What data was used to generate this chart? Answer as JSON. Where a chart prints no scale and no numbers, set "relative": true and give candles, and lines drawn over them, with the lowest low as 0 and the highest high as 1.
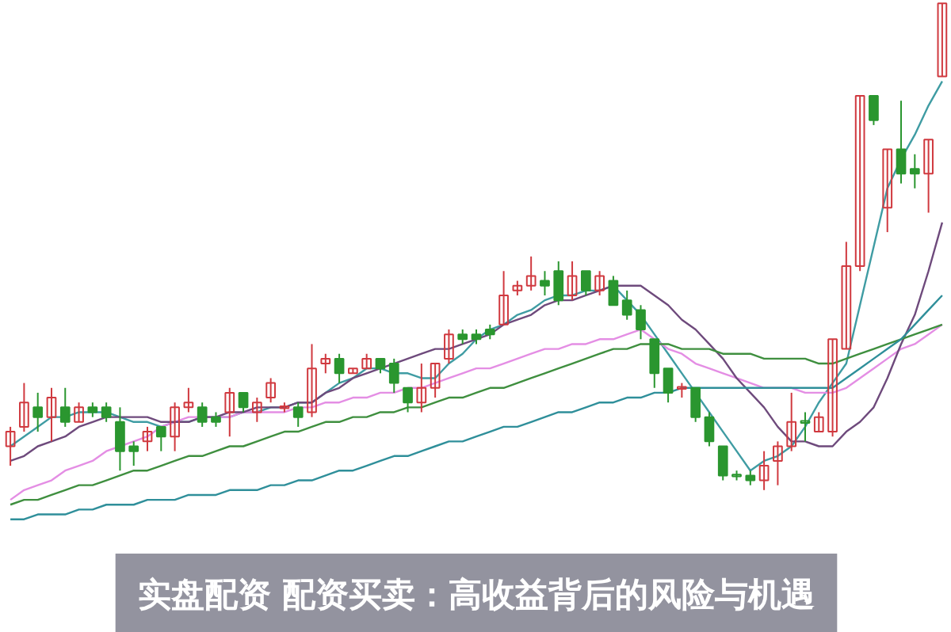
{
  "chart_data": {
    "type": "candlestick",
    "title": "实盘配资 配资买卖：高收益背后的风险与机遇",
    "relative": true,
    "tick_labels": false,
    "categories": [
      null,
      null,
      null,
      null,
      null,
      null,
      null,
      null,
      null,
      null,
      null,
      null,
      null,
      null,
      null,
      null,
      null,
      null,
      null,
      null,
      null,
      null,
      null,
      null,
      null,
      null,
      null,
      null,
      null,
      null,
      null,
      null,
      null,
      null,
      null,
      null,
      null,
      null,
      null,
      null,
      null,
      null,
      null,
      null,
      null,
      null,
      null,
      null,
      null,
      null,
      null,
      null,
      null,
      null,
      null,
      null,
      null,
      null,
      null,
      null,
      null,
      null,
      null,
      null,
      null,
      null,
      null,
      null,
      null
    ],
    "ohlc": [
      [
        0.09,
        0.13,
        0.05,
        0.12
      ],
      [
        0.13,
        0.22,
        0.12,
        0.18
      ],
      [
        0.17,
        0.2,
        0.12,
        0.15
      ],
      [
        0.15,
        0.21,
        0.1,
        0.19
      ],
      [
        0.17,
        0.21,
        0.13,
        0.14
      ],
      [
        0.14,
        0.18,
        0.14,
        0.17
      ],
      [
        0.17,
        0.18,
        0.15,
        0.16
      ],
      [
        0.17,
        0.18,
        0.14,
        0.15
      ],
      [
        0.14,
        0.17,
        0.04,
        0.08
      ],
      [
        0.09,
        0.1,
        0.05,
        0.08
      ],
      [
        0.1,
        0.13,
        0.08,
        0.12
      ],
      [
        0.13,
        0.13,
        0.08,
        0.11
      ],
      [
        0.11,
        0.18,
        0.08,
        0.17
      ],
      [
        0.17,
        0.21,
        0.16,
        0.18
      ],
      [
        0.17,
        0.18,
        0.13,
        0.14
      ],
      [
        0.15,
        0.16,
        0.13,
        0.14
      ],
      [
        0.16,
        0.21,
        0.11,
        0.2
      ],
      [
        0.2,
        0.2,
        0.16,
        0.17
      ],
      [
        0.16,
        0.19,
        0.14,
        0.18
      ],
      [
        0.19,
        0.23,
        0.18,
        0.22
      ],
      [
        0.17,
        0.18,
        0.16,
        0.17
      ],
      [
        0.17,
        0.18,
        0.13,
        0.15
      ],
      [
        0.16,
        0.3,
        0.15,
        0.25
      ],
      [
        0.26,
        0.28,
        0.24,
        0.27
      ],
      [
        0.27,
        0.28,
        0.22,
        0.24
      ],
      [
        0.24,
        0.25,
        0.24,
        0.25
      ],
      [
        0.25,
        0.28,
        0.25,
        0.27
      ],
      [
        0.27,
        0.27,
        0.24,
        0.25
      ],
      [
        0.26,
        0.27,
        0.2,
        0.22
      ],
      [
        0.21,
        0.21,
        0.16,
        0.18
      ],
      [
        0.18,
        0.26,
        0.16,
        0.21
      ],
      [
        0.21,
        0.26,
        0.19,
        0.26
      ],
      [
        0.27,
        0.33,
        0.26,
        0.32
      ],
      [
        0.32,
        0.33,
        0.3,
        0.31
      ],
      [
        0.32,
        0.33,
        0.3,
        0.31
      ],
      [
        0.33,
        0.34,
        0.31,
        0.32
      ],
      [
        0.34,
        0.45,
        0.34,
        0.4
      ],
      [
        0.41,
        0.43,
        0.4,
        0.42
      ],
      [
        0.42,
        0.48,
        0.41,
        0.44
      ],
      [
        0.43,
        0.45,
        0.4,
        0.42
      ],
      [
        0.45,
        0.47,
        0.38,
        0.39
      ],
      [
        0.4,
        0.47,
        0.39,
        0.44
      ],
      [
        0.45,
        0.45,
        0.4,
        0.41
      ],
      [
        0.41,
        0.45,
        0.4,
        0.44
      ],
      [
        0.43,
        0.44,
        0.38,
        0.38
      ],
      [
        0.39,
        0.41,
        0.35,
        0.36
      ],
      [
        0.37,
        0.38,
        0.31,
        0.33
      ],
      [
        0.31,
        0.31,
        0.21,
        0.24
      ],
      [
        0.25,
        0.25,
        0.18,
        0.2
      ],
      [
        0.21,
        0.22,
        0.19,
        0.21
      ],
      [
        0.21,
        0.21,
        0.14,
        0.15
      ],
      [
        0.15,
        0.16,
        0.09,
        0.1
      ],
      [
        0.09,
        0.09,
        0.02,
        0.03
      ],
      [
        0.03,
        0.04,
        0.02,
        0.03
      ],
      [
        0.03,
        0.04,
        0.01,
        0.02
      ],
      [
        0.02,
        0.08,
        0,
        0.05
      ],
      [
        0.06,
        0.1,
        0.01,
        0.09
      ],
      [
        0.09,
        0.2,
        0.08,
        0.14
      ],
      [
        0.14,
        0.16,
        0.1,
        0.14
      ],
      [
        0.12,
        0.16,
        0.12,
        0.15
      ],
      [
        0.12,
        0.31,
        0.11,
        0.31
      ],
      [
        0.29,
        0.51,
        0.29,
        0.46
      ],
      [
        0.46,
        0.81,
        0.45,
        0.81
      ],
      [
        0.81,
        0.81,
        0.75,
        0.76
      ],
      [
        0.58,
        0.7,
        0.53,
        0.7
      ],
      [
        0.7,
        0.8,
        0.63,
        0.65
      ],
      [
        0.66,
        0.69,
        0.62,
        0.65
      ],
      [
        0.65,
        0.72,
        0.57,
        0.72
      ],
      [
        0.85,
        1,
        0.85,
        1
      ]
    ],
    "colors": [
      "#d0393f",
      "#d0393f",
      "#2a962f",
      "#d0393f",
      "#2a962f",
      "#d0393f",
      "#2a962f",
      "#2a962f",
      "#2a962f",
      "#2a962f",
      "#d0393f",
      "#2a962f",
      "#d0393f",
      "#d0393f",
      "#2a962f",
      "#2a962f",
      "#d0393f",
      "#2a962f",
      "#d0393f",
      "#d0393f",
      "#d0393f",
      "#2a962f",
      "#d0393f",
      "#d0393f",
      "#2a962f",
      "#d0393f",
      "#d0393f",
      "#2a962f",
      "#2a962f",
      "#2a962f",
      "#d0393f",
      "#d0393f",
      "#d0393f",
      "#2a962f",
      "#2a962f",
      "#2a962f",
      "#d0393f",
      "#d0393f",
      "#d0393f",
      "#2a962f",
      "#2a962f",
      "#d0393f",
      "#2a962f",
      "#d0393f",
      "#2a962f",
      "#2a962f",
      "#2a962f",
      "#2a962f",
      "#2a962f",
      "#d0393f",
      "#2a962f",
      "#2a962f",
      "#2a962f",
      "#2a962f",
      "#2a962f",
      "#d0393f",
      "#d0393f",
      "#d0393f",
      "#2a962f",
      "#d0393f",
      "#d0393f",
      "#d0393f",
      "#d0393f",
      "#2a962f",
      "#d0393f",
      "#2a962f",
      "#2a962f",
      "#d0393f",
      "#d0393f"
    ],
    "series": [
      {
        "type": "line",
        "color": "#3f9ca3",
        "values": [
          0.09,
          0.11,
          0.13,
          0.15,
          0.15,
          0.16,
          0.16,
          0.16,
          0.15,
          0.14,
          0.14,
          0.13,
          0.14,
          0.14,
          0.15,
          0.15,
          0.15,
          0.16,
          0.16,
          0.17,
          0.17,
          0.18,
          0.18,
          0.2,
          0.22,
          0.23,
          0.25,
          0.25,
          0.24,
          0.24,
          0.23,
          0.23,
          0.26,
          0.28,
          0.31,
          0.33,
          0.34,
          0.36,
          0.37,
          0.39,
          0.4,
          0.4,
          0.41,
          0.41,
          0.42,
          0.39,
          0.36,
          0.32,
          0.28,
          0.24,
          0.2,
          0.16,
          0.12,
          0.08,
          0.04,
          0.06,
          0.07,
          0.09,
          0.13,
          0.18,
          0.22,
          0.26,
          0.38,
          0.5,
          0.62,
          0.68,
          0.73,
          0.79,
          0.84
        ]
      },
      {
        "type": "line",
        "color": "#e48ee4",
        "values": [
          -0.02,
          0.0,
          0.01,
          0.02,
          0.04,
          0.05,
          0.06,
          0.08,
          0.09,
          0.1,
          0.11,
          0.13,
          0.14,
          0.15,
          0.15,
          0.15,
          0.15,
          0.16,
          0.16,
          0.16,
          0.16,
          0.17,
          0.17,
          0.18,
          0.18,
          0.19,
          0.19,
          0.2,
          0.2,
          0.21,
          0.21,
          0.22,
          0.23,
          0.24,
          0.25,
          0.25,
          0.26,
          0.27,
          0.28,
          0.29,
          0.29,
          0.3,
          0.3,
          0.31,
          0.31,
          0.32,
          0.33,
          0.31,
          0.29,
          0.28,
          0.26,
          0.25,
          0.24,
          0.23,
          0.22,
          0.21,
          0.21,
          0.21,
          0.2,
          0.2,
          0.2,
          0.21,
          0.23,
          0.25,
          0.27,
          0.29,
          0.3,
          0.32,
          0.34
        ]
      },
      {
        "type": "line",
        "color": "#6e4a7c",
        "values": [
          0.06,
          0.07,
          0.09,
          0.1,
          0.11,
          0.13,
          0.14,
          0.15,
          0.15,
          0.15,
          0.15,
          0.14,
          0.14,
          0.14,
          0.15,
          0.15,
          0.16,
          0.16,
          0.17,
          0.17,
          0.17,
          0.18,
          0.18,
          0.2,
          0.21,
          0.23,
          0.24,
          0.25,
          0.26,
          0.27,
          0.28,
          0.29,
          0.29,
          0.3,
          0.31,
          0.32,
          0.34,
          0.35,
          0.36,
          0.38,
          0.39,
          0.39,
          0.4,
          0.41,
          0.42,
          0.42,
          0.42,
          0.4,
          0.38,
          0.35,
          0.33,
          0.3,
          0.27,
          0.23,
          0.2,
          0.17,
          0.13,
          0.1,
          0.1,
          0.09,
          0.09,
          0.12,
          0.14,
          0.17,
          0.23,
          0.3,
          0.36,
          0.45,
          0.55
        ]
      },
      {
        "type": "line",
        "color": "#3f8f3f",
        "values": [
          -0.03,
          -0.02,
          -0.02,
          -0.01,
          0.0,
          0.01,
          0.01,
          0.02,
          0.03,
          0.04,
          0.04,
          0.05,
          0.06,
          0.07,
          0.07,
          0.08,
          0.09,
          0.09,
          0.1,
          0.11,
          0.12,
          0.12,
          0.13,
          0.14,
          0.14,
          0.15,
          0.15,
          0.16,
          0.16,
          0.17,
          0.17,
          0.18,
          0.19,
          0.19,
          0.2,
          0.21,
          0.21,
          0.22,
          0.23,
          0.24,
          0.25,
          0.26,
          0.27,
          0.28,
          0.29,
          0.29,
          0.3,
          0.3,
          0.3,
          0.29,
          0.29,
          0.29,
          0.28,
          0.28,
          0.28,
          0.27,
          0.27,
          0.27,
          0.27,
          0.26,
          0.26,
          0.27,
          0.28,
          0.29,
          0.3,
          0.31,
          0.32,
          0.33,
          0.34
        ]
      },
      {
        "type": "line",
        "color": "#2f8f9a",
        "values": [
          -0.06,
          -0.06,
          -0.05,
          -0.05,
          -0.05,
          -0.04,
          -0.04,
          -0.03,
          -0.03,
          -0.03,
          -0.02,
          -0.02,
          -0.02,
          -0.01,
          -0.01,
          -0.01,
          0.0,
          0.0,
          0.0,
          0.01,
          0.01,
          0.02,
          0.02,
          0.03,
          0.04,
          0.04,
          0.05,
          0.06,
          0.07,
          0.07,
          0.08,
          0.09,
          0.1,
          0.1,
          0.11,
          0.12,
          0.13,
          0.13,
          0.14,
          0.15,
          0.16,
          0.16,
          0.17,
          0.18,
          0.18,
          0.19,
          0.19,
          0.2,
          0.2,
          0.21,
          0.21,
          0.21,
          0.21,
          0.21,
          0.21,
          0.21,
          0.21,
          0.21,
          0.21,
          0.21,
          0.21,
          0.23,
          0.25,
          0.27,
          0.29,
          0.31,
          0.34,
          0.37,
          0.4
        ]
      }
    ]
  }
}
